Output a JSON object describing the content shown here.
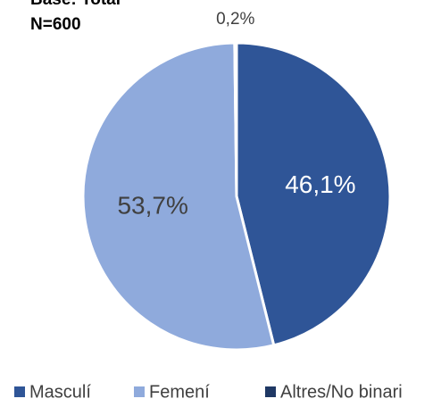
{
  "chart_data": {
    "type": "pie",
    "title": "Base: Total",
    "subtitle": "N=600",
    "categories": [
      "Masculí",
      "Femení",
      "Altres/No binari"
    ],
    "values": [
      46.1,
      53.7,
      0.2
    ],
    "value_labels": [
      "46,1%",
      "53,7%",
      "0,2%"
    ],
    "colors": [
      "#2f5597",
      "#8faadc",
      "#1f3864"
    ],
    "legend": "bottom"
  }
}
